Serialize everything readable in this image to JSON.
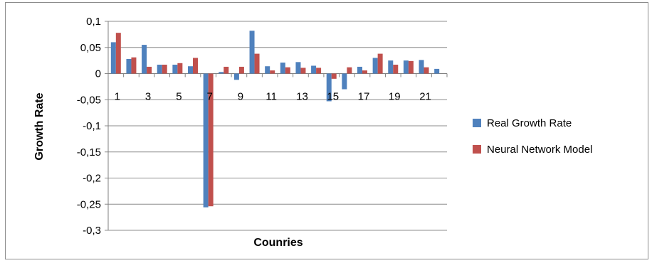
{
  "chart_data": {
    "type": "bar",
    "title": "",
    "xlabel": "Counries",
    "ylabel": "Growth Rate",
    "ylim": [
      -0.3,
      0.1
    ],
    "yticks": [
      0.1,
      0.05,
      0,
      -0.05,
      -0.1,
      -0.15,
      -0.2,
      -0.25,
      -0.3
    ],
    "ytick_labels": [
      "0,1",
      "0,05",
      "0",
      "-0,05",
      "-0,1",
      "-0,15",
      "-0,2",
      "-0,25",
      "-0,3"
    ],
    "categories": [
      "1",
      "2",
      "3",
      "4",
      "5",
      "6",
      "7",
      "8",
      "9",
      "10",
      "11",
      "12",
      "13",
      "14",
      "15",
      "16",
      "17",
      "18",
      "19",
      "20",
      "21",
      "22"
    ],
    "xtick_labels": [
      "1",
      "3",
      "5",
      "7",
      "9",
      "11",
      "13",
      "15",
      "17",
      "19",
      "21"
    ],
    "grid": true,
    "legend_position": "right",
    "series": [
      {
        "name": "Real Growth Rate",
        "color": "#4f81bd",
        "values": [
          0.06,
          0.028,
          0.055,
          0.017,
          0.017,
          0.014,
          -0.256,
          0.003,
          -0.012,
          0.082,
          0.014,
          0.021,
          0.022,
          0.015,
          -0.053,
          -0.03,
          0.013,
          0.03,
          0.025,
          0.025,
          0.026,
          0.009
        ]
      },
      {
        "name": "Neural Network Model",
        "color": "#c0504d",
        "values": [
          0.078,
          0.031,
          0.013,
          0.017,
          0.02,
          0.03,
          -0.254,
          0.013,
          0.013,
          0.038,
          0.006,
          0.012,
          0.011,
          0.011,
          -0.01,
          0.012,
          0.006,
          0.038,
          0.017,
          0.024,
          0.012,
          0.0
        ]
      }
    ]
  }
}
